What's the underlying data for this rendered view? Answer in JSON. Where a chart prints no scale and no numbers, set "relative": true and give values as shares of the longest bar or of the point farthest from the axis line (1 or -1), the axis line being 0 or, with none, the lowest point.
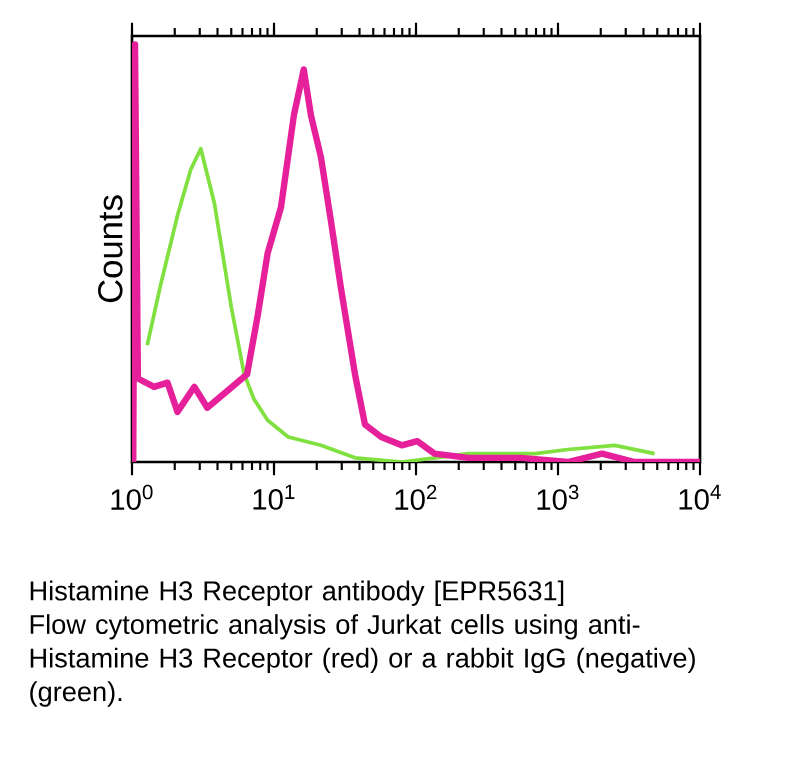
{
  "chart_data": {
    "type": "line",
    "ylabel": "Counts",
    "relative": true,
    "log": "x",
    "xlim": [
      1,
      10000
    ],
    "xticks": [
      {
        "value": 1,
        "label": "10$^{0}$"
      },
      {
        "value": 10,
        "label": "10$^{1}$"
      },
      {
        "value": 100,
        "label": "10$^{2}$"
      },
      {
        "value": 1000,
        "label": "10$^{3}$"
      },
      {
        "value": 10000,
        "label": "10$^{4}$"
      }
    ],
    "annotations": [
      "Histamine H3 Receptor antibody [EPR5631]",
      "Flow cytometric analysis of Jurkat cells using anti-Histamine H3 Receptor (red) or a rabbit IgG (negative) (green)."
    ],
    "series": [
      {
        "color": "#80e040",
        "x": [
          1.28,
          1.58,
          2.09,
          2.59,
          3.05,
          3.8,
          5.01,
          6.17,
          7.24,
          9.02,
          12.6,
          21.4,
          37.2,
          79.4,
          234,
          692,
          1175,
          2512,
          4786
        ],
        "values": [
          0.28,
          0.42,
          0.59,
          0.7,
          0.75,
          0.62,
          0.37,
          0.21,
          0.15,
          0.1,
          0.06,
          0.04,
          0.01,
          0.0,
          0.02,
          0.02,
          0.03,
          0.04,
          0.02
        ]
      },
      {
        "color": "#e6209a",
        "x": [
          1.02,
          1.05,
          1.1,
          1.43,
          1.78,
          2.09,
          2.75,
          3.39,
          4.68,
          6.46,
          7.67,
          9.02,
          11.2,
          13.8,
          16.2,
          18.2,
          21.4,
          25.1,
          29.5,
          37.2,
          43.7,
          56.9,
          79.4,
          102,
          135,
          234,
          550,
          1175,
          2042,
          3467,
          10000
        ],
        "values": [
          0.0,
          1.0,
          0.2,
          0.18,
          0.19,
          0.12,
          0.18,
          0.13,
          0.17,
          0.21,
          0.35,
          0.5,
          0.61,
          0.83,
          0.94,
          0.83,
          0.73,
          0.58,
          0.42,
          0.21,
          0.09,
          0.06,
          0.04,
          0.05,
          0.02,
          0.01,
          0.01,
          0.0,
          0.02,
          0.0,
          0.0
        ]
      }
    ]
  }
}
